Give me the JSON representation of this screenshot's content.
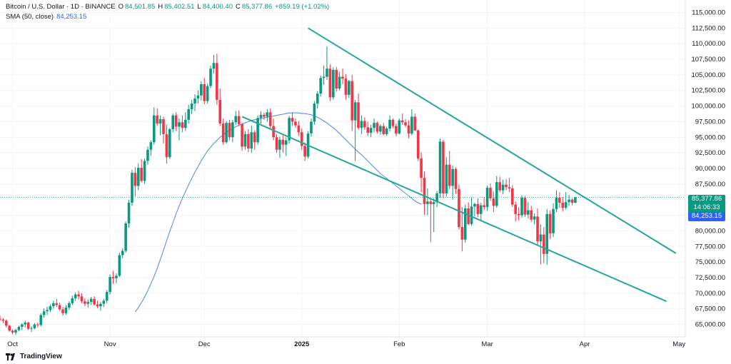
{
  "legend": {
    "symbol": "Bitcoin / U.S. Dollar · 1D · BINANCE",
    "o_key": "O",
    "o_val": "84,501.85",
    "h_key": "H",
    "h_val": "85,402.51",
    "l_key": "L",
    "l_val": "84,400.40",
    "c_key": "C",
    "c_val": "85,377.86",
    "change": "+859.19 (+1.02%)",
    "sma_label": "SMA (50, close)",
    "sma_value": "84,253.15"
  },
  "price_tag": "85,377.86",
  "countdown_tag": "14:06:33",
  "sma_tag": "84,253.15",
  "brand": "TradingView",
  "colors": {
    "up": "#089981",
    "down": "#f23645",
    "sma": "#5b8def",
    "channel": "#26a69a",
    "sma_tag": "#2962ff"
  },
  "chart_data": {
    "type": "candlestick",
    "timeframe": "1D",
    "xlim": [
      "2024-09-27",
      "2025-05-03"
    ],
    "ylim": [
      63000,
      117000
    ],
    "y_ticks": [
      "65,000.00",
      "67,500.00",
      "70,000.00",
      "72,500.00",
      "75,000.00",
      "77,500.00",
      "80,000.00",
      "82,500.00",
      "85,000.00",
      "87,500.00",
      "90,000.00",
      "92,500.00",
      "95,000.00",
      "97,500.00",
      "100,000.00",
      "102,500.00",
      "105,000.00",
      "107,500.00",
      "110,000.00",
      "112,500.00",
      "115,000.00"
    ],
    "y_tick_values": [
      65000,
      67500,
      70000,
      72500,
      75000,
      77500,
      80000,
      82500,
      85000,
      87500,
      90000,
      92500,
      95000,
      97500,
      100000,
      102500,
      105000,
      107500,
      110000,
      112500,
      115000
    ],
    "x_ticks": [
      {
        "label": "Oct",
        "date": "2024-10-01",
        "bold": false
      },
      {
        "label": "Nov",
        "date": "2024-11-01",
        "bold": false
      },
      {
        "label": "Dec",
        "date": "2024-12-01",
        "bold": false
      },
      {
        "label": "2025",
        "date": "2025-01-01",
        "bold": true
      },
      {
        "label": "Feb",
        "date": "2025-02-01",
        "bold": false
      },
      {
        "label": "Mar",
        "date": "2025-03-01",
        "bold": false
      },
      {
        "label": "Apr",
        "date": "2025-04-01",
        "bold": false
      },
      {
        "label": "May",
        "date": "2025-05-01",
        "bold": false
      }
    ],
    "candles_start": "2024-09-27",
    "candles": [
      [
        65900,
        66400,
        65600,
        65800
      ],
      [
        65800,
        66000,
        65200,
        65600
      ],
      [
        65600,
        65800,
        64500,
        64800
      ],
      [
        64800,
        64900,
        63800,
        64000
      ],
      [
        64000,
        64200,
        63400,
        63700
      ],
      [
        63700,
        64300,
        63300,
        64100
      ],
      [
        64100,
        64800,
        63900,
        64600
      ],
      [
        64600,
        65200,
        64100,
        65000
      ],
      [
        65000,
        65600,
        64500,
        65300
      ],
      [
        65300,
        65400,
        64100,
        64300
      ],
      [
        64300,
        64700,
        63800,
        64400
      ],
      [
        64400,
        65200,
        64200,
        65000
      ],
      [
        65000,
        65300,
        64500,
        64900
      ],
      [
        64900,
        66800,
        64700,
        66500
      ],
      [
        66500,
        67600,
        66100,
        67100
      ],
      [
        67100,
        67800,
        66500,
        67300
      ],
      [
        67300,
        68200,
        67000,
        67900
      ],
      [
        67900,
        68800,
        67500,
        68400
      ],
      [
        68400,
        69100,
        67800,
        68100
      ],
      [
        68100,
        68500,
        67200,
        67400
      ],
      [
        67400,
        67800,
        66400,
        66800
      ],
      [
        66800,
        68100,
        66500,
        67700
      ],
      [
        67700,
        68700,
        67300,
        68400
      ],
      [
        68400,
        69600,
        68100,
        69200
      ],
      [
        69200,
        70100,
        68800,
        69800
      ],
      [
        69800,
        70400,
        69000,
        69500
      ],
      [
        69500,
        70000,
        68400,
        68700
      ],
      [
        68700,
        69200,
        67900,
        68300
      ],
      [
        68300,
        69000,
        67700,
        68600
      ],
      [
        68600,
        69400,
        68100,
        69100
      ],
      [
        69100,
        69500,
        68000,
        68200
      ],
      [
        68200,
        68800,
        67600,
        67900
      ],
      [
        67900,
        68600,
        67200,
        68300
      ],
      [
        68300,
        69100,
        67800,
        68800
      ],
      [
        68800,
        70500,
        68400,
        70200
      ],
      [
        70200,
        73000,
        69800,
        72600
      ],
      [
        72600,
        73600,
        71500,
        72400
      ],
      [
        72400,
        73200,
        71600,
        72800
      ],
      [
        72800,
        76500,
        72600,
        76100
      ],
      [
        76100,
        77200,
        75600,
        76800
      ],
      [
        76800,
        81500,
        76500,
        81200
      ],
      [
        81200,
        85000,
        80500,
        84500
      ],
      [
        84500,
        89800,
        84000,
        89300
      ],
      [
        89300,
        90200,
        85500,
        87200
      ],
      [
        87200,
        90800,
        86500,
        90100
      ],
      [
        90100,
        91500,
        87800,
        88000
      ],
      [
        88000,
        91600,
        87500,
        91200
      ],
      [
        91200,
        93500,
        90600,
        93000
      ],
      [
        93000,
        94500,
        92000,
        94200
      ],
      [
        94200,
        99800,
        93800,
        98500
      ],
      [
        98500,
        99600,
        96800,
        97200
      ],
      [
        97200,
        98500,
        95300,
        97900
      ],
      [
        97900,
        98300,
        94000,
        95500
      ],
      [
        95500,
        97000,
        90800,
        91800
      ],
      [
        91800,
        96500,
        91500,
        96300
      ],
      [
        96300,
        98800,
        95800,
        98500
      ],
      [
        98500,
        99000,
        96000,
        96700
      ],
      [
        96700,
        98000,
        94500,
        97400
      ],
      [
        97400,
        98500,
        95800,
        96500
      ],
      [
        96500,
        99000,
        96000,
        97800
      ],
      [
        97800,
        100200,
        97200,
        99500
      ],
      [
        99500,
        101000,
        98700,
        100400
      ],
      [
        100400,
        101900,
        99200,
        101200
      ],
      [
        101200,
        102500,
        100400,
        101700
      ],
      [
        101700,
        104000,
        100900,
        103500
      ],
      [
        103500,
        104500,
        100300,
        100800
      ],
      [
        100800,
        103600,
        100400,
        103200
      ],
      [
        103200,
        106500,
        102900,
        106000
      ],
      [
        106000,
        108200,
        105200,
        106900
      ],
      [
        106900,
        108400,
        100200,
        101000
      ],
      [
        101000,
        102800,
        96800,
        97200
      ],
      [
        97200,
        98000,
        93800,
        94200
      ],
      [
        94200,
        97600,
        94000,
        97300
      ],
      [
        97300,
        97800,
        94500,
        95000
      ],
      [
        95000,
        97800,
        94200,
        97400
      ],
      [
        97400,
        99200,
        97000,
        98400
      ],
      [
        98400,
        99300,
        96800,
        97100
      ],
      [
        97100,
        97300,
        92800,
        93500
      ],
      [
        93500,
        96000,
        93000,
        95500
      ],
      [
        95500,
        96300,
        92600,
        93200
      ],
      [
        93200,
        96900,
        92500,
        95800
      ],
      [
        95800,
        96100,
        93000,
        94200
      ],
      [
        94200,
        98500,
        93800,
        98100
      ],
      [
        98100,
        99200,
        97200,
        98600
      ],
      [
        98600,
        99000,
        97800,
        98300
      ],
      [
        98300,
        99500,
        97500,
        99000
      ],
      [
        99000,
        99600,
        96200,
        96800
      ],
      [
        96800,
        98000,
        94500,
        95000
      ],
      [
        95000,
        95500,
        92500,
        93000
      ],
      [
        93000,
        95100,
        91700,
        94600
      ],
      [
        94600,
        95300,
        92500,
        93800
      ],
      [
        93800,
        95000,
        92000,
        94500
      ],
      [
        94500,
        98400,
        94000,
        98100
      ],
      [
        98100,
        99000,
        96800,
        97500
      ],
      [
        97500,
        98000,
        96500,
        96900
      ],
      [
        96900,
        97600,
        95200,
        95800
      ],
      [
        95800,
        96400,
        93000,
        93600
      ],
      [
        93600,
        94200,
        91200,
        91900
      ],
      [
        91900,
        96000,
        91600,
        95600
      ],
      [
        95600,
        98000,
        95100,
        97500
      ],
      [
        97500,
        100800,
        97000,
        100400
      ],
      [
        100400,
        102400,
        99600,
        102000
      ],
      [
        102000,
        104900,
        101500,
        104500
      ],
      [
        104500,
        106500,
        103400,
        104700
      ],
      [
        104700,
        109600,
        104200,
        106000
      ],
      [
        106000,
        106700,
        100800,
        101400
      ],
      [
        101400,
        106200,
        101000,
        105800
      ],
      [
        105800,
        106300,
        102300,
        102800
      ],
      [
        102800,
        105500,
        102500,
        104700
      ],
      [
        104700,
        106000,
        103500,
        104400
      ],
      [
        104400,
        105100,
        101000,
        101800
      ],
      [
        101800,
        104200,
        101300,
        104000
      ],
      [
        104000,
        105000,
        96000,
        97700
      ],
      [
        97700,
        101000,
        91200,
        100600
      ],
      [
        100600,
        102000,
        96200,
        96500
      ],
      [
        96500,
        98500,
        95500,
        97600
      ],
      [
        97600,
        98200,
        96200,
        96600
      ],
      [
        96600,
        97500,
        95200,
        95700
      ],
      [
        95700,
        97000,
        95000,
        96500
      ],
      [
        96500,
        98000,
        95800,
        97300
      ],
      [
        97300,
        97500,
        95600,
        95900
      ],
      [
        95900,
        97100,
        95400,
        96800
      ],
      [
        96800,
        97300,
        95300,
        95500
      ],
      [
        95500,
        96700,
        95200,
        96400
      ],
      [
        96400,
        98500,
        95900,
        97800
      ],
      [
        97800,
        98000,
        96500,
        96800
      ],
      [
        96800,
        97200,
        95200,
        95600
      ],
      [
        95600,
        98000,
        95500,
        97700
      ],
      [
        97700,
        98800,
        97000,
        97400
      ],
      [
        97400,
        97900,
        96600,
        96900
      ],
      [
        96900,
        97700,
        94800,
        95600
      ],
      [
        95600,
        99500,
        95300,
        98300
      ],
      [
        98300,
        98800,
        96000,
        96100
      ],
      [
        96100,
        96300,
        91200,
        91600
      ],
      [
        91600,
        92600,
        86200,
        88500
      ],
      [
        88500,
        89500,
        82600,
        84300
      ],
      [
        84300,
        86800,
        82500,
        84700
      ],
      [
        84700,
        85100,
        78200,
        84300
      ],
      [
        84300,
        85200,
        79800,
        84600
      ],
      [
        84600,
        86400,
        83800,
        86000
      ],
      [
        86000,
        94800,
        85300,
        94300
      ],
      [
        94300,
        94600,
        85200,
        86000
      ],
      [
        86000,
        91800,
        85500,
        90600
      ],
      [
        90600,
        92800,
        86700,
        87200
      ],
      [
        87200,
        90500,
        85000,
        89900
      ],
      [
        89900,
        90200,
        85900,
        86700
      ],
      [
        86700,
        87400,
        80200,
        80600
      ],
      [
        80600,
        83800,
        76700,
        78600
      ],
      [
        78600,
        84200,
        78100,
        83600
      ],
      [
        83600,
        84600,
        80900,
        81100
      ],
      [
        81100,
        85300,
        80800,
        83900
      ],
      [
        83900,
        84500,
        82300,
        84300
      ],
      [
        84300,
        85200,
        82200,
        82700
      ],
      [
        82700,
        84500,
        81600,
        84100
      ],
      [
        84100,
        85400,
        83300,
        83800
      ],
      [
        83800,
        87300,
        83200,
        86900
      ],
      [
        86900,
        87600,
        84800,
        85200
      ],
      [
        85200,
        86300,
        83000,
        84000
      ],
      [
        84000,
        88800,
        83700,
        87800
      ],
      [
        87800,
        88700,
        86200,
        86500
      ],
      [
        86500,
        88200,
        85900,
        87400
      ],
      [
        87400,
        88300,
        86500,
        87000
      ],
      [
        87000,
        88500,
        86200,
        86800
      ],
      [
        86800,
        87300,
        83800,
        84200
      ],
      [
        84200,
        84700,
        81500,
        82700
      ],
      [
        82700,
        83800,
        81700,
        82500
      ],
      [
        82500,
        85700,
        82100,
        85300
      ],
      [
        85300,
        85600,
        82200,
        82600
      ],
      [
        82600,
        84600,
        82000,
        83300
      ],
      [
        83300,
        84000,
        81400,
        81800
      ],
      [
        81800,
        82800,
        81000,
        82300
      ],
      [
        82300,
        83600,
        77600,
        78300
      ],
      [
        78300,
        81000,
        74600,
        79400
      ],
      [
        79400,
        80600,
        74800,
        76300
      ],
      [
        76300,
        83500,
        74600,
        82700
      ],
      [
        82700,
        83300,
        78700,
        79600
      ],
      [
        79600,
        84400,
        79000,
        83500
      ],
      [
        83500,
        86500,
        83000,
        85300
      ],
      [
        85300,
        86200,
        83700,
        84500
      ],
      [
        84500,
        85400,
        83100,
        83700
      ],
      [
        83700,
        86200,
        83400,
        84600
      ],
      [
        84600,
        85800,
        84000,
        85000
      ],
      [
        85000,
        85200,
        84100,
        84500
      ],
      [
        84500,
        85402.51,
        84400.4,
        85377.86
      ]
    ],
    "series": [
      {
        "name": "SMA (50, close)",
        "start": "2024-11-09",
        "values": [
          67000,
          67700,
          68500,
          69400,
          70400,
          71500,
          72700,
          74000,
          75400,
          76900,
          78400,
          79900,
          81300,
          82700,
          84000,
          85200,
          86300,
          87400,
          88400,
          89400,
          90300,
          91200,
          92000,
          92800,
          93400,
          94000,
          94500,
          95000,
          95400,
          95800,
          96100,
          96400,
          96700,
          96900,
          97100,
          97300,
          97500,
          97700,
          97800,
          97900,
          98000,
          98100,
          98200,
          98300,
          98400,
          98500,
          98600,
          98700,
          98800,
          98900,
          98900,
          98900,
          98900,
          98800,
          98800,
          98700,
          98600,
          98400,
          98200,
          97900,
          97600,
          97300,
          96900,
          96500,
          96100,
          95600,
          95100,
          94600,
          94100,
          93600,
          93100,
          92600,
          92200,
          91700,
          91200,
          90700,
          90200,
          89700,
          89200,
          88800,
          88400,
          88000,
          87600,
          87200,
          86800,
          86400,
          86000,
          85600,
          85200,
          84800,
          84500,
          84253.15
        ]
      }
    ],
    "trendlines": [
      {
        "from": [
          "2025-01-03",
          112500
        ],
        "to": [
          "2025-04-30",
          76400
        ]
      },
      {
        "from": [
          "2024-12-13",
          98300
        ],
        "to": [
          "2025-04-27",
          68700
        ]
      }
    ]
  }
}
